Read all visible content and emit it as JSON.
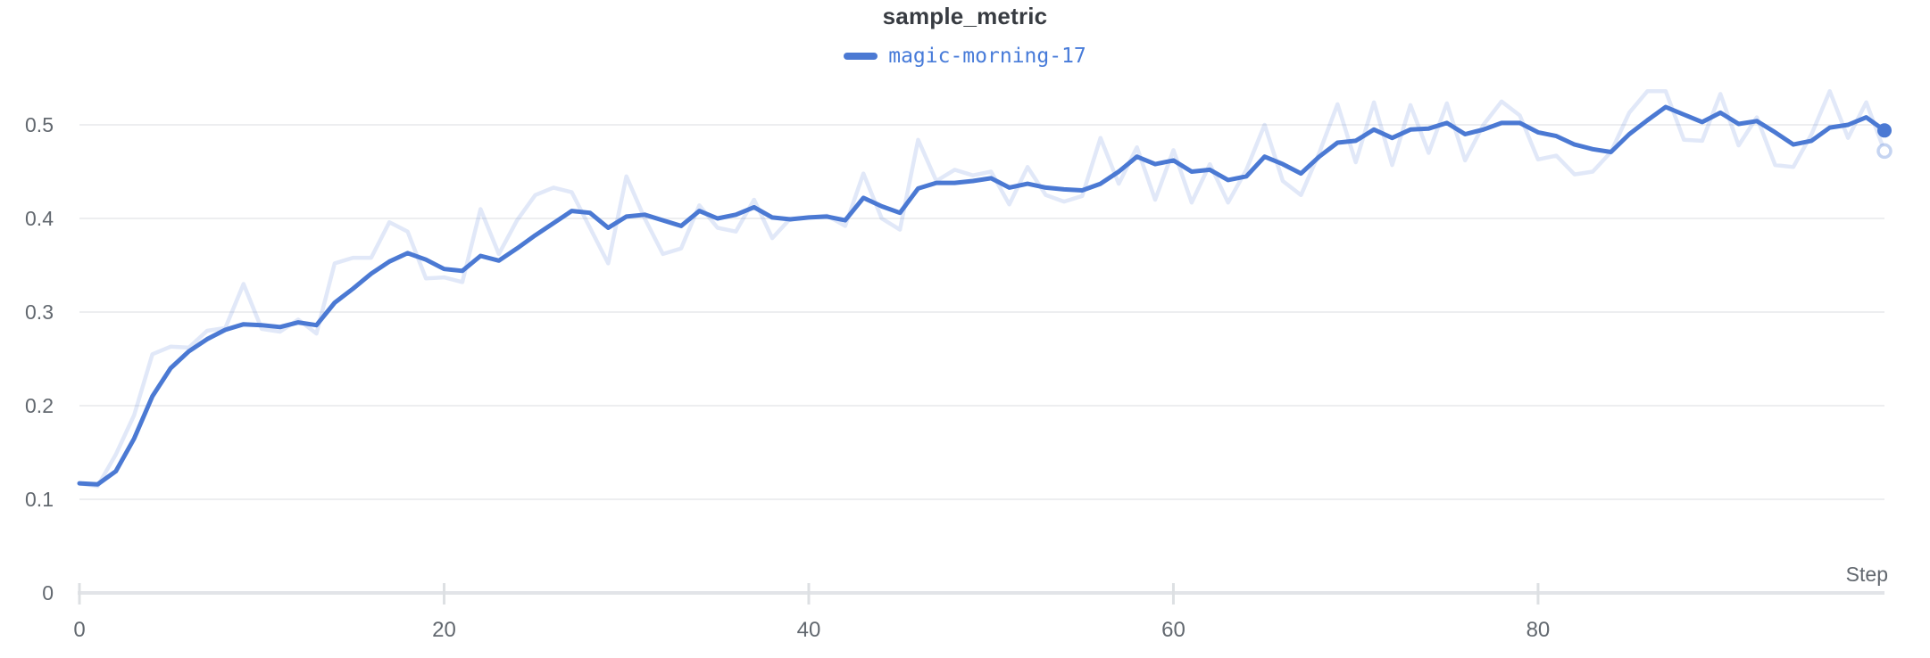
{
  "header": {
    "title": "sample_metric"
  },
  "legend": {
    "series_label": "magic-morning-17"
  },
  "axes": {
    "x_label": "Step",
    "x_ticks": [
      {
        "value": 0,
        "label": "0"
      },
      {
        "value": 20,
        "label": "20"
      },
      {
        "value": 40,
        "label": "40"
      },
      {
        "value": 60,
        "label": "60"
      },
      {
        "value": 80,
        "label": "80"
      }
    ],
    "y_ticks": [
      {
        "value": 0,
        "label": "0"
      },
      {
        "value": 0.1,
        "label": "0.1"
      },
      {
        "value": 0.2,
        "label": "0.2"
      },
      {
        "value": 0.3,
        "label": "0.3"
      },
      {
        "value": 0.4,
        "label": "0.4"
      },
      {
        "value": 0.5,
        "label": "0.5"
      }
    ]
  },
  "colors": {
    "line": "#4b79d3",
    "raw_line_opacity": 0.17,
    "legend_text": "#477bd9",
    "title_text": "#383c42",
    "axis_text": "#62686f",
    "gridline": "#edeef0",
    "baseline": "#e2e4e8",
    "tick": "#dde0e3",
    "background": "#ffffff"
  },
  "chart_data": {
    "type": "line",
    "title": "sample_metric",
    "xlabel": "Step",
    "ylabel": "",
    "x_start": 0,
    "x_step": 1,
    "n_points": 100,
    "xlim": [
      0,
      99
    ],
    "ylim": [
      0,
      0.55
    ],
    "grid": "horizontal",
    "legend_position": "top-center",
    "series": [
      {
        "name": "magic-morning-17",
        "role": "smoothed",
        "values": [
          0.117,
          0.116,
          0.13,
          0.165,
          0.21,
          0.24,
          0.258,
          0.271,
          0.281,
          0.287,
          0.286,
          0.284,
          0.289,
          0.286,
          0.31,
          0.325,
          0.341,
          0.354,
          0.363,
          0.356,
          0.346,
          0.344,
          0.36,
          0.355,
          0.368,
          0.382,
          0.395,
          0.408,
          0.406,
          0.39,
          0.402,
          0.404,
          0.398,
          0.392,
          0.408,
          0.4,
          0.404,
          0.412,
          0.401,
          0.399,
          0.401,
          0.402,
          0.398,
          0.422,
          0.413,
          0.406,
          0.432,
          0.438,
          0.438,
          0.44,
          0.443,
          0.433,
          0.437,
          0.433,
          0.431,
          0.43,
          0.437,
          0.45,
          0.466,
          0.458,
          0.462,
          0.45,
          0.452,
          0.441,
          0.445,
          0.466,
          0.458,
          0.448,
          0.466,
          0.481,
          0.483,
          0.495,
          0.486,
          0.495,
          0.496,
          0.502,
          0.49,
          0.495,
          0.502,
          0.502,
          0.492,
          0.488,
          0.479,
          0.474,
          0.471,
          0.49,
          0.505,
          0.519,
          0.511,
          0.503,
          0.513,
          0.501,
          0.504,
          0.492,
          0.479,
          0.483,
          0.497,
          0.5,
          0.508,
          0.494
        ]
      },
      {
        "name": "magic-morning-17 (original)",
        "role": "raw-faded",
        "values": [
          0.117,
          0.114,
          0.148,
          0.19,
          0.255,
          0.263,
          0.262,
          0.28,
          0.283,
          0.33,
          0.282,
          0.279,
          0.292,
          0.277,
          0.352,
          0.358,
          0.358,
          0.396,
          0.386,
          0.336,
          0.337,
          0.332,
          0.41,
          0.362,
          0.398,
          0.425,
          0.433,
          0.428,
          0.39,
          0.352,
          0.445,
          0.4,
          0.362,
          0.368,
          0.414,
          0.39,
          0.386,
          0.42,
          0.379,
          0.4,
          0.401,
          0.403,
          0.392,
          0.448,
          0.4,
          0.388,
          0.484,
          0.44,
          0.452,
          0.446,
          0.45,
          0.415,
          0.455,
          0.425,
          0.418,
          0.424,
          0.486,
          0.437,
          0.476,
          0.42,
          0.473,
          0.417,
          0.458,
          0.417,
          0.452,
          0.5,
          0.44,
          0.425,
          0.47,
          0.522,
          0.46,
          0.524,
          0.457,
          0.521,
          0.47,
          0.523,
          0.462,
          0.5,
          0.525,
          0.51,
          0.463,
          0.467,
          0.447,
          0.45,
          0.471,
          0.513,
          0.536,
          0.536,
          0.484,
          0.483,
          0.533,
          0.478,
          0.508,
          0.457,
          0.455,
          0.49,
          0.536,
          0.486,
          0.524,
          0.472
        ]
      }
    ],
    "last_point": {
      "smoothed": 0.494,
      "raw": 0.472
    }
  }
}
